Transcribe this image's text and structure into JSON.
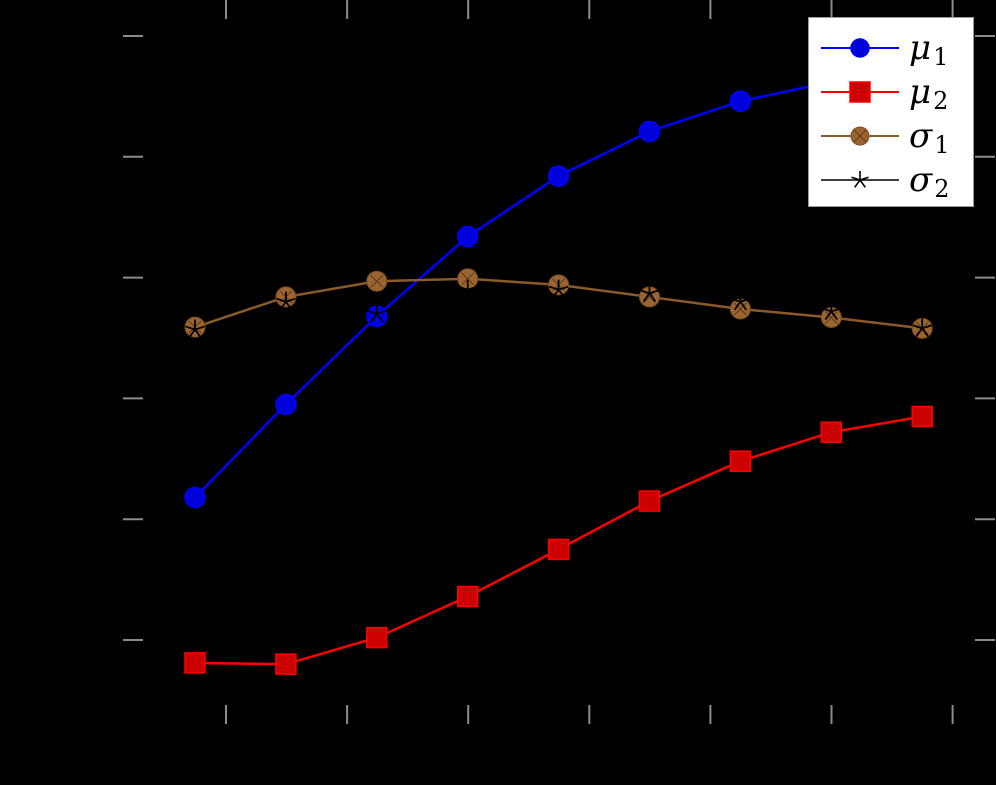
{
  "colors": {
    "background": "#000000",
    "tick": "#8c8c8c",
    "mu1": "#0000ff",
    "mu1_marker": "#0000dd",
    "mu2": "#ff0000",
    "mu2_marker": "#cc0000",
    "sigma1": "#8b5a2b",
    "sigma1_marker": "#9a6531",
    "sigma2": "#000000",
    "legend_bg": "#ffffff"
  },
  "legend": {
    "items": [
      {
        "symbol": "μ",
        "sub": "1",
        "marker": "circle"
      },
      {
        "symbol": "μ",
        "sub": "2",
        "marker": "square"
      },
      {
        "symbol": "σ",
        "sub": "1",
        "marker": "circle-x"
      },
      {
        "symbol": "σ",
        "sub": "2",
        "marker": "star"
      }
    ]
  },
  "chart_data": {
    "type": "line",
    "title": "",
    "xlabel": "",
    "ylabel": "",
    "x": [
      1,
      2,
      3,
      4,
      5,
      6,
      7,
      8,
      9
    ],
    "series": [
      {
        "name": "μ1",
        "marker": "circle",
        "values": [
          1.18,
          1.95,
          2.68,
          3.34,
          3.84,
          4.21,
          4.46,
          4.62,
          4.75
        ]
      },
      {
        "name": "μ2",
        "marker": "square",
        "values": [
          -0.19,
          -0.2,
          0.02,
          0.36,
          0.75,
          1.15,
          1.48,
          1.72,
          1.85
        ]
      },
      {
        "name": "σ1",
        "marker": "circle-x",
        "values": [
          2.59,
          2.84,
          2.97,
          2.99,
          2.94,
          2.84,
          2.74,
          2.67,
          2.58
        ]
      },
      {
        "name": "σ2",
        "marker": "star",
        "values": [
          2.57,
          2.8,
          2.7,
          2.9,
          2.9,
          2.87,
          2.8,
          2.72,
          2.58
        ]
      }
    ],
    "y_ticks": [
      0,
      1,
      2,
      3,
      4,
      5
    ],
    "x_tick_count": 7,
    "tick_labels_visible": false,
    "ylim": [
      -0.7,
      5.3
    ],
    "grid": false,
    "legend_position": "upper right"
  }
}
